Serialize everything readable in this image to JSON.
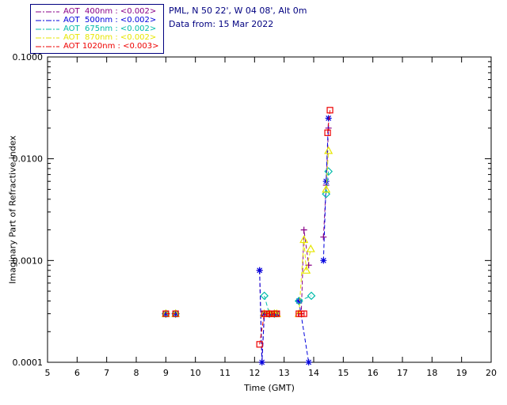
{
  "header": {
    "site_line": "PML, N 50 22', W 04 08', Alt 0m",
    "date_line": "Data from: 15 Mar 2022",
    "text_color": "#000080"
  },
  "legend": {
    "border_color": "#000080",
    "items": [
      {
        "text": "AOT  400nm : <0.002>",
        "color": "#880088"
      },
      {
        "text": "AOT  500nm : <0.002>",
        "color": "#0000dd"
      },
      {
        "text": "AOT  675nm : <0.002>",
        "color": "#00bbaa"
      },
      {
        "text": "AOT  870nm : <0.002>",
        "color": "#e6e600"
      },
      {
        "text": "AOT 1020nm : <0.003>",
        "color": "#ee0000"
      }
    ]
  },
  "chart_data": {
    "type": "line",
    "title": "",
    "xlabel": "Time (GMT)",
    "ylabel": "Imaginary Part of Refractive index",
    "xlim": [
      5,
      20
    ],
    "ylim": [
      0.0001,
      0.1
    ],
    "y_scale": "log",
    "grid": false,
    "legend_position": "top-left",
    "x_ticks": [
      5,
      6,
      7,
      8,
      9,
      10,
      11,
      12,
      13,
      14,
      15,
      16,
      17,
      18,
      19,
      20
    ],
    "y_tick_values": [
      0.0001,
      0.001,
      0.01,
      0.1
    ],
    "y_tick_labels": [
      "0.0001",
      "0.0010",
      "0.0100",
      "0.1000"
    ],
    "series": [
      {
        "name": "AOT 400nm",
        "aot_value": "<0.002>",
        "color": "#880088",
        "marker": "plus",
        "segments": [
          [
            [
              9.0,
              0.0003
            ],
            [
              9.33,
              0.0003
            ]
          ],
          [
            [
              12.17,
              0.0008
            ],
            [
              12.25,
              0.0001
            ],
            [
              12.33,
              0.0003
            ],
            [
              12.5,
              0.0003
            ],
            [
              12.67,
              0.0003
            ],
            [
              12.75,
              0.0003
            ]
          ],
          [
            [
              13.5,
              0.0003
            ],
            [
              13.58,
              0.0003
            ],
            [
              13.67,
              0.002
            ],
            [
              13.83,
              0.0009
            ]
          ],
          [
            [
              14.33,
              0.0017
            ],
            [
              14.42,
              0.0055
            ],
            [
              14.5,
              0.02
            ]
          ]
        ]
      },
      {
        "name": "AOT 500nm",
        "aot_value": "<0.002>",
        "color": "#0000dd",
        "marker": "asterisk",
        "segments": [
          [
            [
              9.0,
              0.0003
            ],
            [
              9.33,
              0.0003
            ]
          ],
          [
            [
              12.17,
              0.0008
            ],
            [
              12.25,
              0.0001
            ],
            [
              12.33,
              0.0003
            ],
            [
              12.58,
              0.0003
            ],
            [
              12.75,
              0.0003
            ]
          ],
          [
            [
              13.5,
              0.0004
            ],
            [
              13.83,
              0.0001
            ]
          ],
          [
            [
              14.33,
              0.001
            ],
            [
              14.42,
              0.006
            ],
            [
              14.5,
              0.025
            ]
          ]
        ]
      },
      {
        "name": "AOT 675nm",
        "aot_value": "<0.002>",
        "color": "#00bbaa",
        "marker": "diamond",
        "segments": [
          [
            [
              9.0,
              0.0003
            ],
            [
              9.33,
              0.0003
            ]
          ],
          [
            [
              12.33,
              0.00045
            ],
            [
              12.5,
              0.0003
            ],
            [
              12.67,
              0.0003
            ]
          ],
          [
            [
              13.5,
              0.0004
            ],
            [
              13.92,
              0.00045
            ]
          ],
          [
            [
              14.42,
              0.0045
            ],
            [
              14.5,
              0.0075
            ]
          ]
        ]
      },
      {
        "name": "AOT 870nm",
        "aot_value": "<0.002>",
        "color": "#e6e600",
        "marker": "triangle",
        "segments": [
          [
            [
              9.0,
              0.0003
            ],
            [
              9.33,
              0.0003
            ]
          ],
          [
            [
              12.33,
              0.0003
            ],
            [
              12.5,
              0.0003
            ],
            [
              12.67,
              0.0003
            ],
            [
              12.75,
              0.0003
            ]
          ],
          [
            [
              13.5,
              0.0003
            ],
            [
              13.67,
              0.0016
            ],
            [
              13.75,
              0.0008
            ],
            [
              13.9,
              0.0013
            ]
          ],
          [
            [
              14.42,
              0.005
            ],
            [
              14.5,
              0.012
            ]
          ]
        ]
      },
      {
        "name": "AOT 1020nm",
        "aot_value": "<0.003>",
        "color": "#ee0000",
        "marker": "square",
        "segments": [
          [
            [
              9.0,
              0.0003
            ],
            [
              9.33,
              0.0003
            ]
          ],
          [
            [
              12.17,
              0.00015
            ],
            [
              12.33,
              0.0003
            ],
            [
              12.42,
              0.0003
            ],
            [
              12.5,
              0.0003
            ],
            [
              12.58,
              0.0003
            ],
            [
              12.67,
              0.0003
            ],
            [
              12.75,
              0.0003
            ]
          ],
          [
            [
              13.5,
              0.0003
            ],
            [
              13.58,
              0.0003
            ],
            [
              13.67,
              0.0003
            ]
          ],
          [
            [
              14.47,
              0.018
            ],
            [
              14.55,
              0.03
            ]
          ]
        ]
      }
    ]
  }
}
